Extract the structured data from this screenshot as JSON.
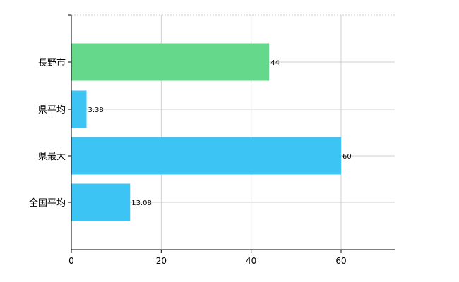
{
  "chart_data": {
    "type": "bar",
    "orientation": "horizontal",
    "categories": [
      "長野市",
      "県平均",
      "県最大",
      "全国平均"
    ],
    "values": [
      44,
      3.38,
      60,
      13.08
    ],
    "data_labels": [
      "44",
      "3.38",
      "60",
      "13.08"
    ],
    "bar_colors": [
      "#66d88c",
      "#3cc4f4",
      "#3cc4f4",
      "#3cc4f4"
    ],
    "x_ticks": [
      0,
      20,
      40,
      60
    ],
    "xlim": [
      0,
      72
    ],
    "grid": true,
    "legend": "none",
    "title": "",
    "xlabel": "",
    "ylabel": ""
  }
}
